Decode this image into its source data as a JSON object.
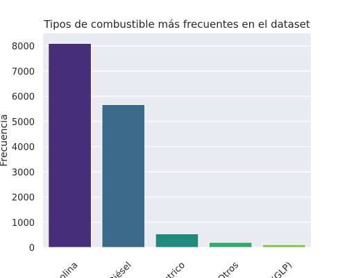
{
  "chart_data": {
    "type": "bar",
    "title": "Tipos de combustible más frecuentes en el dataset",
    "xlabel": "",
    "ylabel": "Frecuencia",
    "categories": [
      "Gasolina",
      "Diésel",
      "Eléctrico",
      "Otros",
      "Gas licuado (GLP)"
    ],
    "category_tick_labels": [
      "solina",
      "Diésel",
      "éctrico",
      "Otros",
      "(GLP)"
    ],
    "values": [
      8100,
      5670,
      540,
      200,
      110
    ],
    "ylim": [
      0,
      8500
    ],
    "yticks": [
      0,
      1000,
      2000,
      3000,
      4000,
      5000,
      6000,
      7000,
      8000
    ],
    "grid": true,
    "legend": "none",
    "colors": [
      "#482f79",
      "#3b6a8b",
      "#22897f",
      "#37a86d",
      "#7ac043"
    ],
    "background_color": "#eaeaf2",
    "grid_color": "#ffffff"
  }
}
